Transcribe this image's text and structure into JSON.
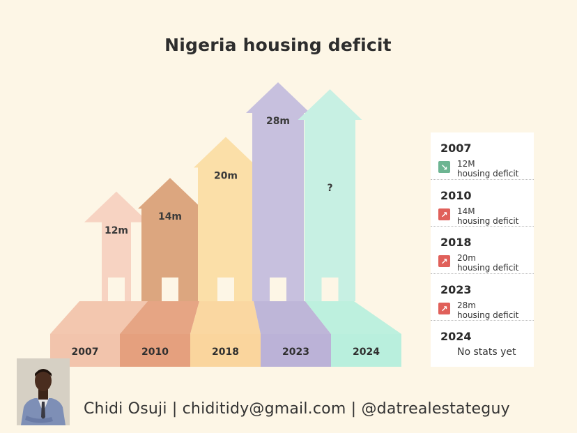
{
  "title": "Nigeria housing deficit",
  "chart_data": {
    "type": "bar",
    "categories": [
      "2007",
      "2010",
      "2018",
      "2023",
      "2024"
    ],
    "values": [
      12,
      14,
      20,
      28,
      null
    ],
    "value_labels": [
      "12m",
      "14m",
      "20m",
      "28m",
      "?"
    ],
    "unit": "million",
    "colors": [
      "#f7d3c2",
      "#dca67f",
      "#fbdfa8",
      "#c7c0de",
      "#c7f0e3"
    ],
    "base_colors": [
      "#f2c4ac",
      "#e5a07e",
      "#fad59d",
      "#bbb2d7",
      "#b9efdd"
    ],
    "grid": false
  },
  "legend": {
    "items": [
      {
        "year": "2007",
        "value": "12M",
        "text": "housing deficit",
        "trend": "down",
        "icon": "arrow-down-right-icon",
        "icon_color": "#6db592"
      },
      {
        "year": "2010",
        "value": "14M",
        "text": "housing deficit",
        "trend": "up",
        "icon": "arrow-up-right-icon",
        "icon_color": "#e0605a"
      },
      {
        "year": "2018",
        "value": "20m",
        "text": "housing deficit",
        "trend": "up",
        "icon": "arrow-up-right-icon",
        "icon_color": "#e0605a"
      },
      {
        "year": "2023",
        "value": "28m",
        "text": "housing deficit",
        "trend": "up",
        "icon": "arrow-up-right-icon",
        "icon_color": "#e0605a"
      },
      {
        "year": "2024",
        "note": "No stats yet"
      }
    ]
  },
  "footer": {
    "text": "Chidi Osuji | chiditidy@gmail.com | @datrealestateguy"
  }
}
